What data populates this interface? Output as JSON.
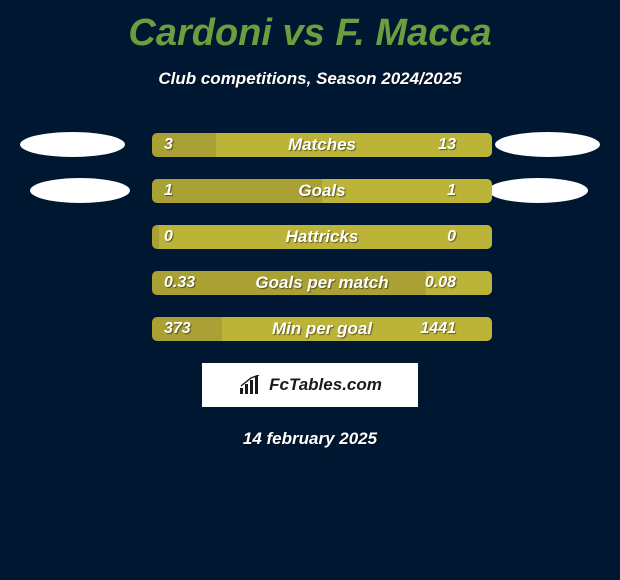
{
  "colors": {
    "background": "#001731",
    "accent": "#6a9e3e",
    "bar_left": "#a9a134",
    "bar_right": "#bcb438",
    "ellipse": "#ffffff",
    "title": "#6a9e3e",
    "subtitle": "#ffffff",
    "stat_label": "#ffffff",
    "logo_bg": "#ffffff",
    "logo_text": "#1a1a1a"
  },
  "title": "Cardoni vs F. Macca",
  "subtitle": "Club competitions, Season 2024/2025",
  "stats": [
    {
      "label": "Matches",
      "left_val": "3",
      "right_val": "13",
      "left_pct": 18.75
    },
    {
      "label": "Goals",
      "left_val": "1",
      "right_val": "1",
      "left_pct": 50
    },
    {
      "label": "Hattricks",
      "left_val": "0",
      "right_val": "0",
      "left_pct": 2
    },
    {
      "label": "Goals per match",
      "left_val": "0.33",
      "right_val": "0.08",
      "left_pct": 80.5
    },
    {
      "label": "Min per goal",
      "left_val": "373",
      "right_val": "1441",
      "left_pct": 20.6
    }
  ],
  "logo_text": "FcTables.com",
  "date": "14 february 2025"
}
